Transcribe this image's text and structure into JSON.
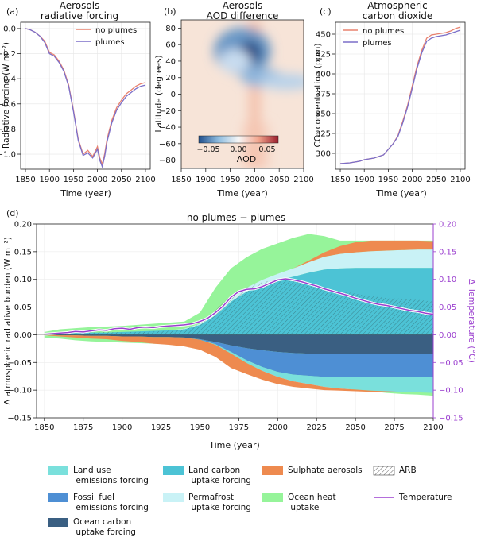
{
  "chart_data": [
    {
      "panel": "(a)",
      "type": "line",
      "title_lines": [
        "Aerosols",
        "radiative forcing"
      ],
      "xlabel": "Time (year)",
      "ylabel": "Radiative forcing (W m⁻²)",
      "xlim": [
        1840,
        2110
      ],
      "ylim": [
        -1.12,
        0.05
      ],
      "xticks": [
        1850,
        1900,
        1950,
        2000,
        2050,
        2100
      ],
      "yticks": [
        0.0,
        -0.2,
        -0.4,
        -0.6,
        -0.8,
        -1.0
      ],
      "ytick_labels": [
        "0.0",
        "−0.2",
        "−0.4",
        "−0.6",
        "−0.8",
        "−1.0"
      ],
      "legend": "top-right",
      "grid": true,
      "series": [
        {
          "name": "no plumes",
          "color": "#e8826f",
          "x": [
            1850,
            1860,
            1870,
            1880,
            1890,
            1900,
            1910,
            1920,
            1930,
            1940,
            1950,
            1960,
            1970,
            1980,
            1990,
            2000,
            2005,
            2010,
            2015,
            2020,
            2030,
            2040,
            2050,
            2060,
            2070,
            2080,
            2090,
            2100
          ],
          "y": [
            0,
            -0.01,
            -0.03,
            -0.06,
            -0.1,
            -0.19,
            -0.21,
            -0.26,
            -0.33,
            -0.45,
            -0.65,
            -0.88,
            -1.0,
            -0.97,
            -1.02,
            -0.94,
            -1.03,
            -1.08,
            -1.0,
            -0.88,
            -0.73,
            -0.63,
            -0.57,
            -0.52,
            -0.49,
            -0.46,
            -0.44,
            -0.43
          ]
        },
        {
          "name": "plumes",
          "color": "#7b6fc9",
          "x": [
            1850,
            1860,
            1870,
            1880,
            1890,
            1900,
            1910,
            1920,
            1930,
            1940,
            1950,
            1960,
            1970,
            1980,
            1990,
            2000,
            2005,
            2010,
            2015,
            2020,
            2030,
            2040,
            2050,
            2060,
            2070,
            2080,
            2090,
            2100
          ],
          "y": [
            0,
            -0.01,
            -0.03,
            -0.06,
            -0.11,
            -0.2,
            -0.22,
            -0.27,
            -0.34,
            -0.46,
            -0.66,
            -0.89,
            -1.01,
            -0.99,
            -1.03,
            -0.96,
            -1.05,
            -1.1,
            -1.02,
            -0.9,
            -0.75,
            -0.65,
            -0.59,
            -0.54,
            -0.51,
            -0.48,
            -0.46,
            -0.45
          ]
        }
      ]
    },
    {
      "panel": "(b)",
      "type": "heatmap",
      "title_lines": [
        "Aerosols",
        "AOD difference"
      ],
      "xlabel": "Time (year)",
      "ylabel": "Latitude (degrees)",
      "xlim": [
        1850,
        2100
      ],
      "ylim": [
        -90,
        90
      ],
      "xticks": [
        1850,
        1900,
        1950,
        2000,
        2050,
        2100
      ],
      "yticks": [
        80,
        60,
        40,
        20,
        0,
        -20,
        -40,
        -60,
        -80
      ],
      "ytick_labels": [
        "80",
        "60",
        "40",
        "20",
        "0",
        "−20",
        "−40",
        "−60",
        "−80"
      ],
      "colorbar": {
        "label": "AOD",
        "min": -0.05,
        "max": 0.05,
        "ticks": [
          "−0.05",
          "0.00",
          "0.05"
        ],
        "colormap": "RdBu_r"
      },
      "features": [
        {
          "year": 1990,
          "lat": 50,
          "aod": -0.06
        },
        {
          "year": 2015,
          "lat": 20,
          "aod": -0.025
        },
        {
          "year": 2060,
          "lat": 15,
          "aod": -0.015
        },
        {
          "year": 2000,
          "lat": -30,
          "aod": 0.02
        },
        {
          "year": 2000,
          "lat": 80,
          "aod": 0.015
        }
      ]
    },
    {
      "panel": "(c)",
      "type": "line",
      "title_lines": [
        "Atmospheric",
        "carbon dioxide"
      ],
      "xlabel": "Time (year)",
      "ylabel": "CO₂ concentration (ppm)",
      "xlim": [
        1840,
        2110
      ],
      "ylim": [
        280,
        465
      ],
      "xticks": [
        1850,
        1900,
        1950,
        2000,
        2050,
        2100
      ],
      "yticks": [
        300,
        325,
        350,
        375,
        400,
        425,
        450
      ],
      "legend": "top-left",
      "grid": true,
      "series": [
        {
          "name": "no plumes",
          "color": "#e8826f",
          "x": [
            1850,
            1870,
            1890,
            1900,
            1920,
            1940,
            1950,
            1960,
            1970,
            1980,
            1990,
            2000,
            2010,
            2020,
            2030,
            2040,
            2050,
            2060,
            2070,
            2080,
            2090,
            2100
          ],
          "y": [
            287,
            288,
            290,
            292,
            294,
            298,
            305,
            312,
            322,
            340,
            360,
            385,
            410,
            430,
            445,
            449,
            450,
            451,
            452,
            454,
            457,
            459
          ]
        },
        {
          "name": "plumes",
          "color": "#7b6fc9",
          "x": [
            1850,
            1870,
            1890,
            1900,
            1920,
            1940,
            1950,
            1960,
            1970,
            1980,
            1990,
            2000,
            2010,
            2020,
            2030,
            2040,
            2050,
            2060,
            2070,
            2080,
            2090,
            2100
          ],
          "y": [
            287,
            288,
            290,
            292,
            294,
            298,
            305,
            312,
            321,
            338,
            358,
            382,
            407,
            427,
            441,
            445,
            447,
            448,
            449,
            451,
            453,
            455
          ]
        }
      ]
    },
    {
      "panel": "(d)",
      "type": "area",
      "title": "no plumes −  plumes",
      "xlabel": "Time (year)",
      "ylabel": "Δ atmospheric radiative burden (W m⁻²)",
      "ylabel_right": "Δ Temperature (°C)",
      "xlim": [
        1845,
        2100
      ],
      "ylim": [
        -0.15,
        0.2
      ],
      "xticks": [
        1850,
        1875,
        1900,
        1925,
        1950,
        1975,
        2000,
        2025,
        2050,
        2075,
        2100
      ],
      "yticks": [
        0.2,
        0.15,
        0.1,
        0.05,
        0.0,
        -0.05,
        -0.1,
        -0.15
      ],
      "ytick_labels": [
        "0.20",
        "0.15",
        "0.10",
        "0.05",
        "0.00",
        "−0.05",
        "−0.10",
        "−0.15"
      ],
      "ytick_labels_right": [
        "0.20",
        "0.15",
        "0.10",
        "0.05",
        "0.00",
        "−0.05",
        "−0.10",
        "−0.15"
      ],
      "years": [
        1850,
        1860,
        1870,
        1880,
        1890,
        1900,
        1910,
        1920,
        1930,
        1940,
        1950,
        1960,
        1970,
        1980,
        1990,
        2000,
        2010,
        2020,
        2030,
        2040,
        2050,
        2060,
        2070,
        2080,
        2090,
        2100
      ],
      "positive_stack": [
        {
          "name": "Ocean carbon uptake forcing",
          "color": "#3a5f82",
          "values": [
            0,
            0,
            0,
            0,
            0,
            0,
            0,
            0,
            0,
            0,
            0,
            0,
            0,
            0,
            0,
            0,
            0,
            0,
            0,
            0,
            0,
            0,
            0,
            0,
            0,
            0
          ]
        },
        {
          "name": "Land carbon uptake forcing",
          "color": "#4cc3d5",
          "values": [
            0.001,
            0.002,
            0.003,
            0.004,
            0.004,
            0.005,
            0.006,
            0.007,
            0.008,
            0.01,
            0.018,
            0.035,
            0.06,
            0.078,
            0.09,
            0.098,
            0.105,
            0.112,
            0.118,
            0.12,
            0.121,
            0.121,
            0.121,
            0.121,
            0.121,
            0.121
          ]
        },
        {
          "name": "Permafrost uptake forcing",
          "color": "#c9f2f6",
          "values": [
            0,
            0,
            0,
            0,
            0,
            0,
            0,
            0,
            0,
            0.001,
            0.002,
            0.003,
            0.005,
            0.007,
            0.009,
            0.012,
            0.015,
            0.019,
            0.023,
            0.026,
            0.028,
            0.03,
            0.031,
            0.032,
            0.033,
            0.033
          ]
        },
        {
          "name": "Sulphate aerosols",
          "color": "#ee8a4f",
          "values": [
            0,
            0,
            0,
            0,
            0,
            0,
            0,
            0,
            0,
            0,
            0,
            0,
            0,
            0,
            0,
            0,
            0,
            0.003,
            0.008,
            0.014,
            0.018,
            0.019,
            0.018,
            0.017,
            0.016,
            0.015
          ]
        }
      ],
      "negative_stack": [
        {
          "name": "Ocean carbon uptake forcing",
          "color": "#3a5f82",
          "values": [
            0,
            -0.001,
            -0.001,
            -0.002,
            -0.002,
            -0.003,
            -0.003,
            -0.004,
            -0.004,
            -0.005,
            -0.008,
            -0.013,
            -0.019,
            -0.024,
            -0.028,
            -0.031,
            -0.033,
            -0.034,
            -0.035,
            -0.035,
            -0.035,
            -0.035,
            -0.035,
            -0.035,
            -0.035,
            -0.035
          ]
        },
        {
          "name": "Fossil fuel emissions forcing",
          "color": "#4e8fd4",
          "values": [
            0,
            0,
            0,
            0,
            0,
            0,
            0,
            0,
            0,
            0,
            -0.001,
            -0.004,
            -0.012,
            -0.022,
            -0.03,
            -0.036,
            -0.039,
            -0.04,
            -0.041,
            -0.041,
            -0.041,
            -0.041,
            -0.041,
            -0.041,
            -0.041,
            -0.041
          ]
        },
        {
          "name": "Land use emissions forcing",
          "color": "#7ae0dc",
          "values": [
            0,
            0,
            0,
            0,
            0,
            0,
            0,
            0,
            0,
            0,
            0,
            -0.001,
            -0.003,
            -0.005,
            -0.007,
            -0.009,
            -0.012,
            -0.015,
            -0.018,
            -0.021,
            -0.023,
            -0.025,
            -0.026,
            -0.027,
            -0.028,
            -0.029
          ]
        },
        {
          "name": "Sulphate aerosols",
          "color": "#ee8a4f",
          "values": [
            -0.001,
            -0.002,
            -0.004,
            -0.005,
            -0.006,
            -0.008,
            -0.01,
            -0.012,
            -0.014,
            -0.016,
            -0.018,
            -0.022,
            -0.026,
            -0.02,
            -0.016,
            -0.013,
            -0.01,
            -0.008,
            -0.006,
            -0.004,
            -0.003,
            -0.002,
            -0.001,
            0,
            0,
            0
          ]
        }
      ],
      "ocean_heat_uptake": {
        "name": "Ocean heat uptake",
        "color": "#96f49a",
        "top": [
          0.005,
          0.01,
          0.012,
          0.014,
          0.015,
          0.016,
          0.018,
          0.02,
          0.022,
          0.024,
          0.04,
          0.085,
          0.12,
          0.14,
          0.155,
          0.165,
          0.175,
          0.182,
          0.178,
          0.17,
          0,
          0,
          0,
          0,
          0,
          0
        ],
        "bottom": [
          -0.005,
          -0.007,
          -0.01,
          -0.012,
          -0.013,
          -0.014,
          -0.015,
          -0.016,
          -0.017,
          -0.018,
          -0.025,
          -0.03,
          -0.045,
          -0.055,
          -0.062,
          -0.068,
          -0.075,
          -0.082,
          -0.09,
          -0.095,
          -0.1,
          -0.102,
          -0.105,
          -0.107,
          -0.108,
          -0.11
        ]
      },
      "arb": {
        "name": "ARB",
        "values": [
          0.001,
          0.002,
          0.003,
          0.004,
          0.005,
          0.004,
          0.005,
          0.006,
          0.007,
          0.01,
          0.02,
          0.045,
          0.07,
          0.085,
          0.095,
          0.1,
          0.098,
          0.092,
          0.085,
          0.079,
          0.074,
          0.07,
          0.067,
          0.065,
          0.063,
          0.06
        ]
      },
      "temperature": {
        "name": "Temperature",
        "color": "#9b3fcf",
        "x": [
          1850,
          1855,
          1860,
          1865,
          1870,
          1875,
          1880,
          1885,
          1890,
          1895,
          1900,
          1905,
          1910,
          1915,
          1920,
          1925,
          1930,
          1935,
          1940,
          1945,
          1950,
          1955,
          1960,
          1965,
          1970,
          1975,
          1980,
          1985,
          1990,
          1995,
          2000,
          2005,
          2010,
          2015,
          2020,
          2025,
          2030,
          2035,
          2040,
          2045,
          2050,
          2055,
          2060,
          2065,
          2070,
          2075,
          2080,
          2085,
          2090,
          2095,
          2100
        ],
        "y": [
          0.001,
          0.002,
          0.003,
          0.004,
          0.006,
          0.005,
          0.007,
          0.009,
          0.008,
          0.011,
          0.012,
          0.01,
          0.013,
          0.014,
          0.013,
          0.015,
          0.016,
          0.017,
          0.018,
          0.02,
          0.024,
          0.03,
          0.04,
          0.052,
          0.068,
          0.078,
          0.082,
          0.083,
          0.087,
          0.093,
          0.099,
          0.101,
          0.099,
          0.096,
          0.092,
          0.088,
          0.083,
          0.079,
          0.075,
          0.071,
          0.066,
          0.062,
          0.058,
          0.055,
          0.053,
          0.05,
          0.047,
          0.044,
          0.042,
          0.039,
          0.037
        ]
      }
    }
  ],
  "legend_d": [
    {
      "name": "Land use\n emissions forcing",
      "color": "#7ae0dc",
      "kind": "patch"
    },
    {
      "name": "Land carbon\n uptake forcing",
      "color": "#4cc3d5",
      "kind": "patch"
    },
    {
      "name": "Sulphate aerosols",
      "color": "#ee8a4f",
      "kind": "patch"
    },
    {
      "name": "ARB",
      "color": "#ffffff",
      "kind": "hatch"
    },
    {
      "name": "Fossil fuel\n emissions forcing",
      "color": "#4e8fd4",
      "kind": "patch"
    },
    {
      "name": "Permafrost\n uptake forcing",
      "color": "#c9f2f6",
      "kind": "patch"
    },
    {
      "name": "Ocean heat\n uptake",
      "color": "#96f49a",
      "kind": "patch"
    },
    {
      "name": "Temperature",
      "color": "#9b3fcf",
      "kind": "line"
    },
    {
      "name": "Ocean carbon\n uptake forcing",
      "color": "#3a5f82",
      "kind": "patch"
    }
  ]
}
